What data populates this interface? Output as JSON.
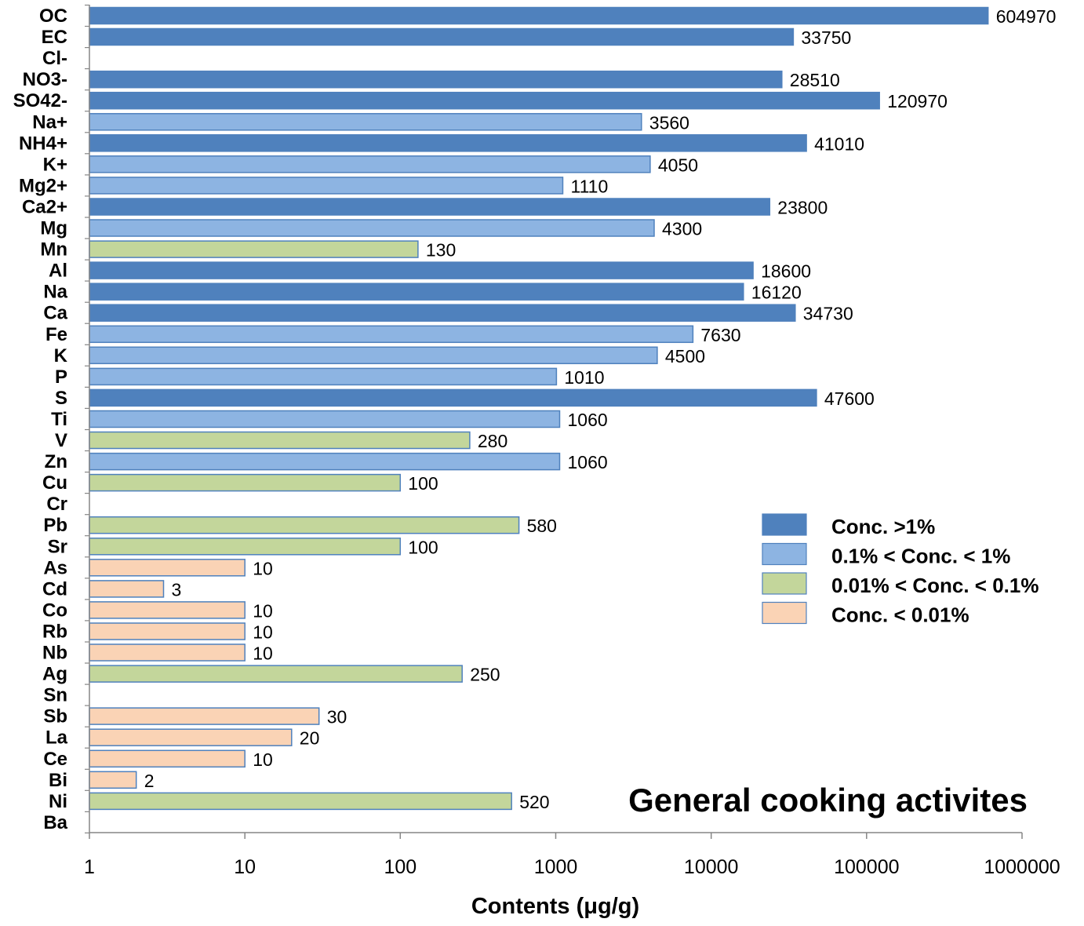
{
  "chart_data": {
    "type": "bar",
    "orientation": "horizontal",
    "x_scale": "log",
    "xlim": [
      1,
      1000000
    ],
    "xlabel": "Contents (μg/g)",
    "ylabel": "",
    "title": "",
    "annotation": "General cooking activites",
    "xticks": [
      "1",
      "10",
      "100",
      "1000",
      "10000",
      "100000",
      "1000000"
    ],
    "grid": false,
    "legend_position": "right",
    "classes": {
      "c1": {
        "name": "Conc. >1%",
        "color": "#4F81BD"
      },
      "c2": {
        "name": "0.1% < Conc. < 1%",
        "color": "#8DB4E2"
      },
      "c3": {
        "name": "0.01% < Conc. < 0.1%",
        "color": "#C3D69B"
      },
      "c4": {
        "name": "Conc. < 0.01%",
        "color": "#FAD3B5"
      }
    },
    "legend_order": [
      "c1",
      "c2",
      "c3",
      "c4"
    ],
    "categories": [
      "OC",
      "EC",
      "Cl-",
      "NO3-",
      "SO42-",
      "Na+",
      "NH4+",
      "K+",
      "Mg2+",
      "Ca2+",
      "Mg",
      "Mn",
      "Al",
      "Na",
      "Ca",
      "Fe",
      "K",
      "P",
      "S",
      "Ti",
      "V",
      "Zn",
      "Cu",
      "Cr",
      "Pb",
      "Sr",
      "As",
      "Cd",
      "Co",
      "Rb",
      "Nb",
      "Ag",
      "Sn",
      "Sb",
      "La",
      "Ce",
      "Bi",
      "Ni",
      "Ba"
    ],
    "values": [
      604970,
      33750,
      null,
      28510,
      120970,
      3560,
      41010,
      4050,
      1110,
      23800,
      4300,
      130,
      18600,
      16120,
      34730,
      7630,
      4500,
      1010,
      47600,
      1060,
      280,
      1060,
      100,
      null,
      580,
      100,
      10,
      3,
      10,
      10,
      10,
      250,
      null,
      30,
      20,
      10,
      2,
      520,
      null
    ],
    "value_labels": [
      "604970",
      "33750",
      "",
      "28510",
      "120970",
      "3560",
      "41010",
      "4050",
      "1110",
      "23800",
      "4300",
      "130",
      "18600",
      "16120",
      "34730",
      "7630",
      "4500",
      "1010",
      "47600",
      "1060",
      "280",
      "1060",
      "100",
      "",
      "580",
      "100",
      "10",
      "3",
      "10",
      "10",
      "10",
      "250",
      "",
      "30",
      "20",
      "10",
      "2",
      "520",
      ""
    ],
    "bar_class": [
      "c1",
      "c1",
      null,
      "c1",
      "c1",
      "c2",
      "c1",
      "c2",
      "c2",
      "c1",
      "c2",
      "c3",
      "c1",
      "c1",
      "c1",
      "c2",
      "c2",
      "c2",
      "c1",
      "c2",
      "c3",
      "c2",
      "c3",
      null,
      "c3",
      "c3",
      "c4",
      "c4",
      "c4",
      "c4",
      "c4",
      "c3",
      null,
      "c4",
      "c4",
      "c4",
      "c4",
      "c3",
      null
    ]
  }
}
